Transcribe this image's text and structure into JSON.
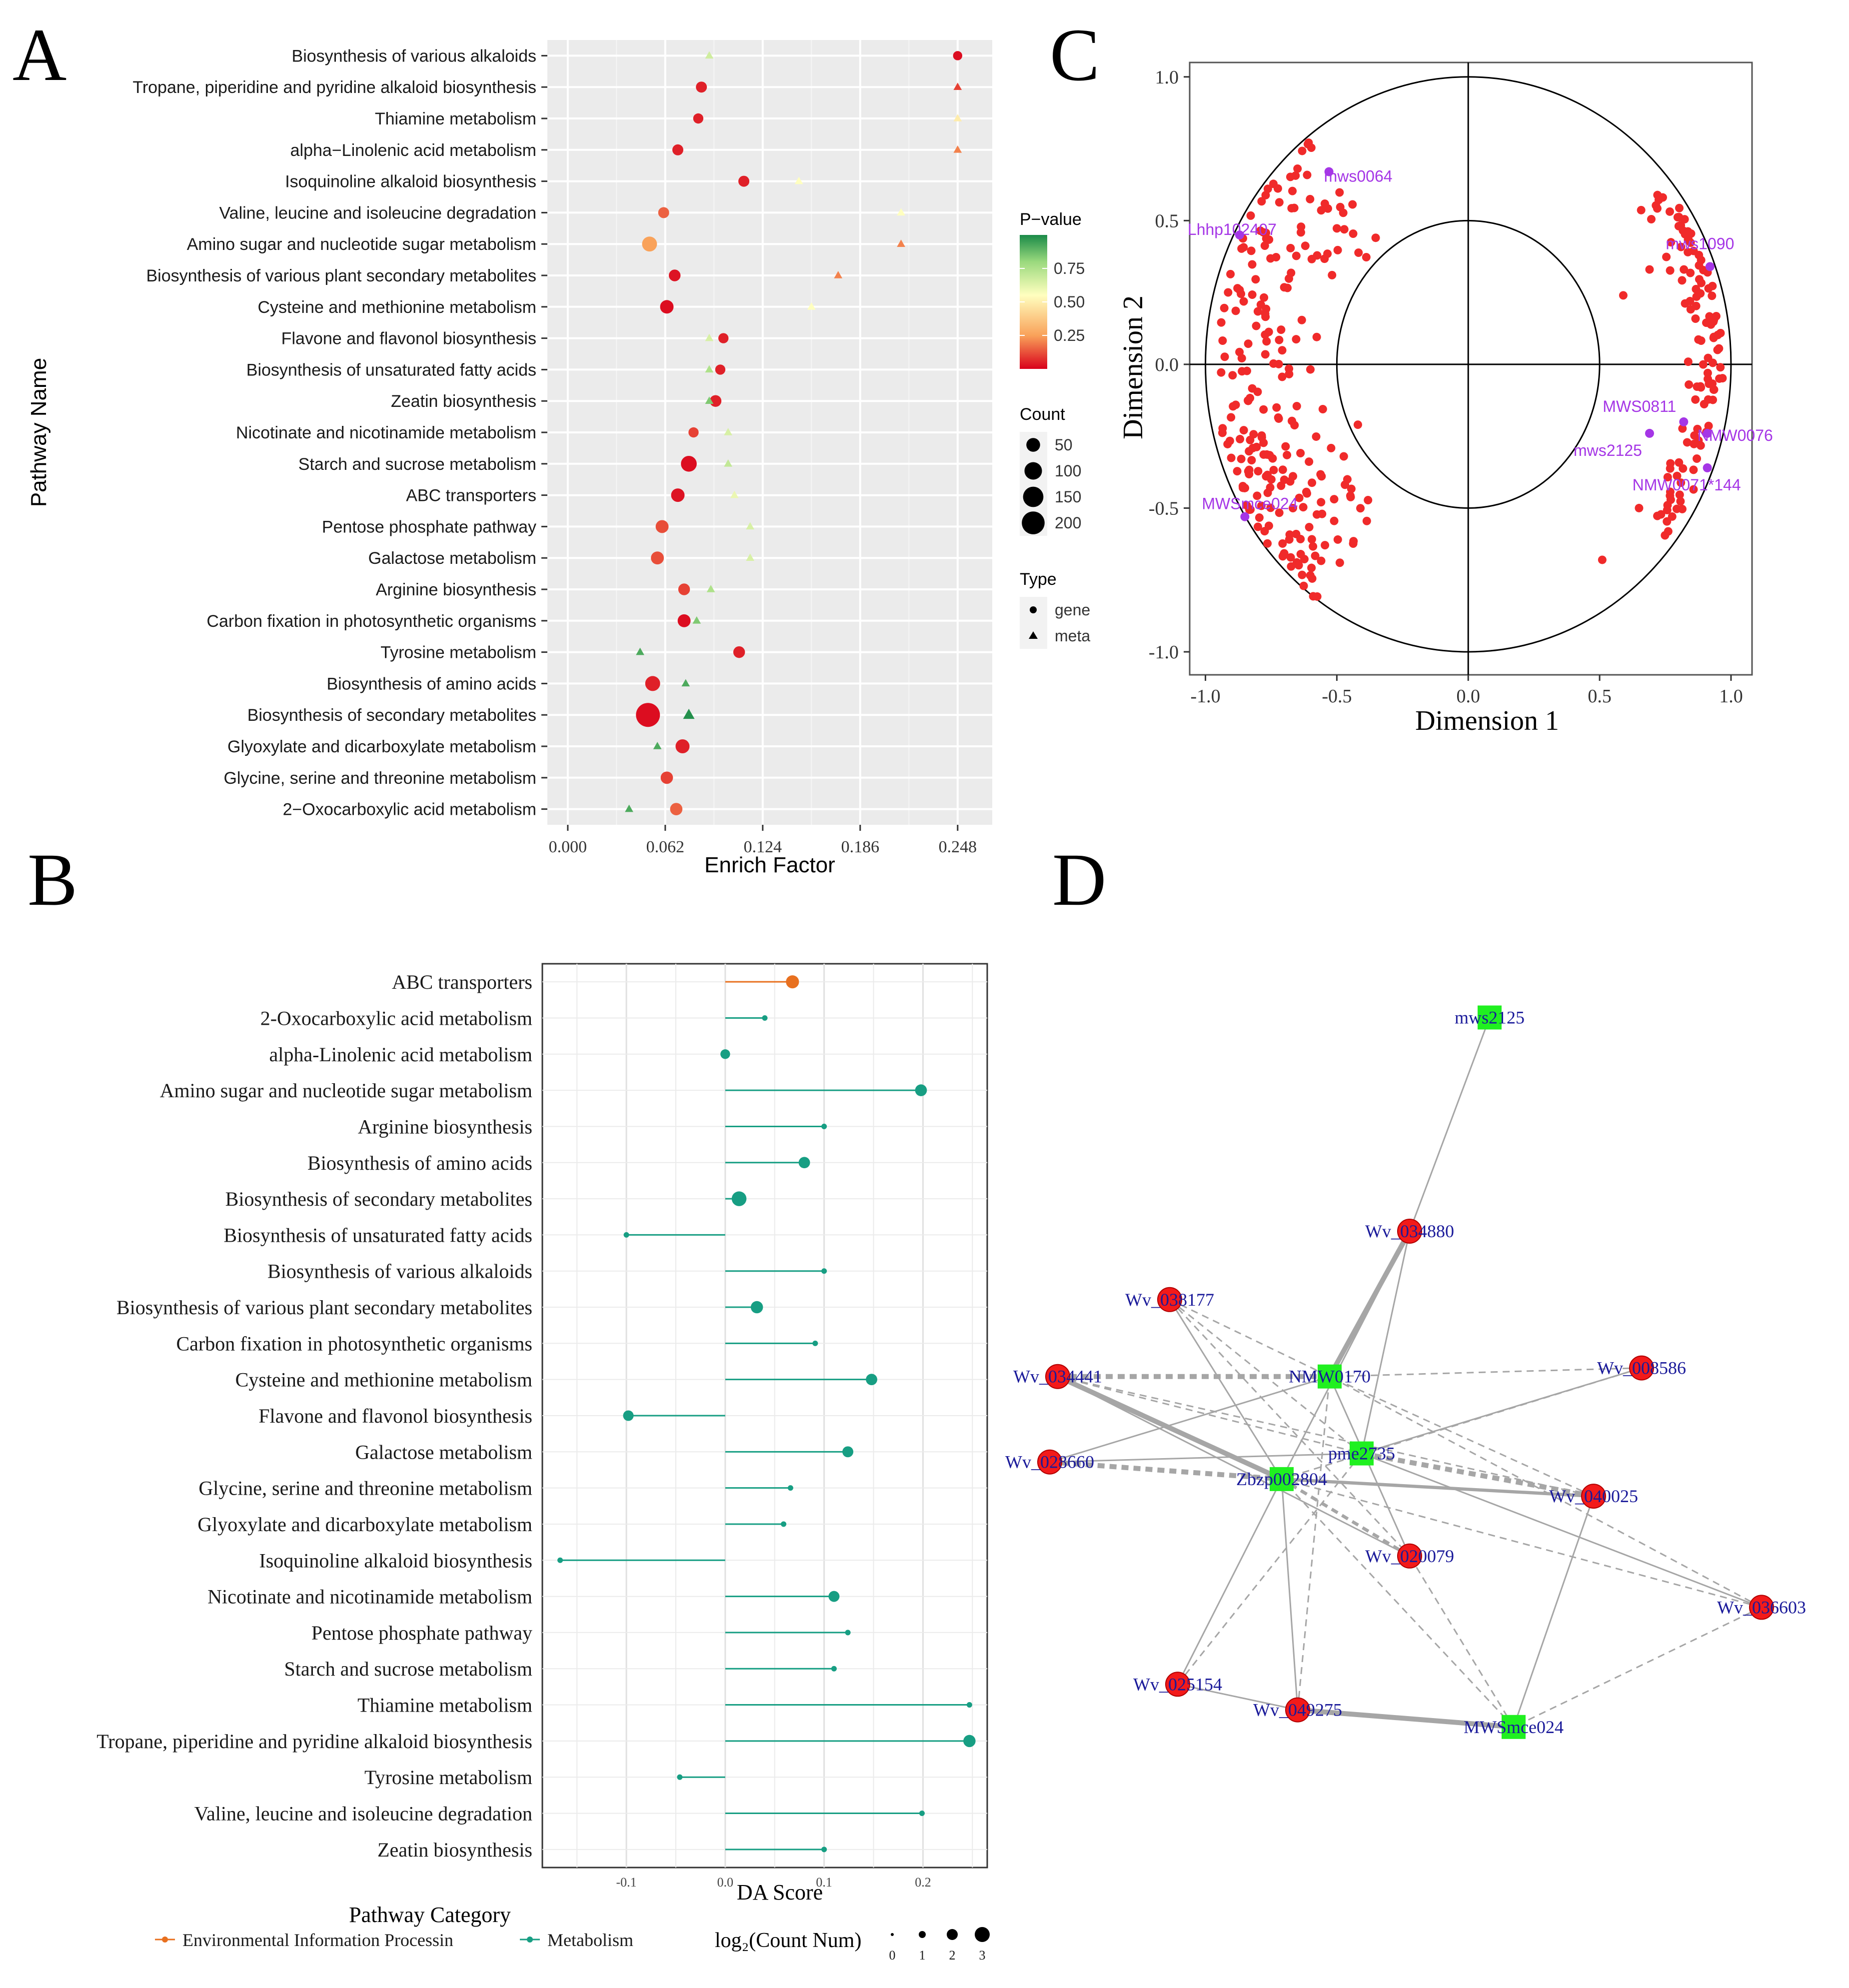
{
  "panels": {
    "a": "A",
    "b": "B",
    "c": "C",
    "d": "D"
  },
  "chart_data": [
    {
      "panel": "A",
      "type": "scatter",
      "xlabel": "Enrich Factor",
      "ylabel": "Pathway Name",
      "xticks": [
        "0.000",
        "0.062",
        "0.124",
        "0.186",
        "0.248"
      ],
      "xlim": [
        -0.013,
        0.27
      ],
      "categories": [
        "Biosynthesis of various alkaloids",
        "Tropane, piperidine and pyridine alkaloid biosynthesis",
        "Thiamine metabolism",
        "alpha−Linolenic acid metabolism",
        "Isoquinoline alkaloid biosynthesis",
        "Valine, leucine and isoleucine degradation",
        "Amino sugar and nucleotide sugar metabolism",
        "Biosynthesis of various plant secondary metabolites",
        "Cysteine and methionine metabolism",
        "Flavone and flavonol biosynthesis",
        "Biosynthesis of unsaturated fatty acids",
        "Zeatin biosynthesis",
        "Nicotinate and nicotinamide metabolism",
        "Starch and sucrose metabolism",
        "ABC transporters",
        "Pentose phosphate pathway",
        "Galactose metabolism",
        "Arginine biosynthesis",
        "Carbon fixation in photosynthetic organisms",
        "Tyrosine metabolism",
        "Biosynthesis of amino acids",
        "Biosynthesis of secondary metabolites",
        "Glyoxylate and dicarboxylate metabolism",
        "Glycine, serine and threonine metabolism",
        "2−Oxocarboxylic acid metabolism"
      ],
      "series": [
        {
          "name": "gene",
          "shape": "circle",
          "x": [
            0.248,
            0.085,
            0.083,
            0.07,
            0.112,
            0.061,
            0.052,
            0.068,
            0.063,
            0.099,
            0.097,
            0.094,
            0.08,
            0.077,
            0.07,
            0.06,
            0.057,
            0.074,
            0.074,
            0.109,
            0.054,
            0.051,
            0.073,
            0.063,
            0.069
          ],
          "count": [
            10,
            20,
            15,
            20,
            20,
            20,
            55,
            25,
            40,
            15,
            15,
            25,
            15,
            65,
            40,
            35,
            35,
            25,
            35,
            25,
            55,
            200,
            45,
            30,
            30
          ],
          "p": [
            0.02,
            0.05,
            0.05,
            0.05,
            0.05,
            0.15,
            0.25,
            0.03,
            0.02,
            0.05,
            0.05,
            0.05,
            0.1,
            0.02,
            0.03,
            0.12,
            0.12,
            0.1,
            0.02,
            0.05,
            0.05,
            0.02,
            0.05,
            0.1,
            0.15
          ]
        },
        {
          "name": "meta",
          "shape": "triangle",
          "x": [
            0.09,
            0.248,
            0.248,
            0.248,
            0.147,
            0.212,
            0.212,
            0.172,
            0.155,
            0.09,
            0.09,
            0.09,
            0.102,
            0.102,
            0.106,
            0.116,
            0.116,
            0.091,
            0.082,
            0.046,
            0.075,
            0.077,
            0.057,
            null,
            0.039
          ],
          "count": [
            5,
            5,
            5,
            5,
            5,
            5,
            5,
            5,
            5,
            5,
            5,
            5,
            5,
            5,
            5,
            5,
            5,
            5,
            5,
            5,
            5,
            20,
            5,
            null,
            5
          ],
          "p": [
            0.62,
            0.1,
            0.45,
            0.2,
            0.5,
            0.5,
            0.2,
            0.2,
            0.5,
            0.6,
            0.7,
            0.8,
            0.6,
            0.65,
            0.55,
            0.6,
            0.6,
            0.7,
            0.8,
            0.9,
            0.9,
            0.98,
            0.9,
            null,
            0.9
          ]
        }
      ],
      "legend_color": {
        "title": "P−value",
        "ticks": [
          "0.75",
          "0.50",
          "0.25"
        ],
        "gradient": [
          "#d9001b",
          "#f9a25a",
          "#ffffbf",
          "#9ad97d",
          "#1a8a48"
        ]
      },
      "legend_size": {
        "title": "Count",
        "values": [
          "50",
          "100",
          "150",
          "200"
        ]
      },
      "legend_shape": {
        "title": "Type",
        "items": [
          "gene",
          "meta"
        ]
      }
    },
    {
      "panel": "B",
      "type": "lollipop",
      "xlabel": "DA Score",
      "xticks": [
        "-0.1",
        "0.0",
        "0.1",
        "0.2"
      ],
      "xlim": [
        -0.185,
        0.265
      ],
      "categories": [
        "ABC transporters",
        "2-Oxocarboxylic acid metabolism",
        "alpha-Linolenic acid metabolism",
        "Amino sugar and nucleotide sugar metabolism",
        "Arginine biosynthesis",
        "Biosynthesis of amino acids",
        "Biosynthesis of secondary metabolites",
        "Biosynthesis of unsaturated fatty acids",
        "Biosynthesis of various alkaloids",
        "Biosynthesis of various plant secondary metabolites",
        "Carbon fixation in photosynthetic organisms",
        "Cysteine and methionine metabolism",
        "Flavone and flavonol biosynthesis",
        "Galactose metabolism",
        "Glycine, serine and threonine metabolism",
        "Glyoxylate and dicarboxylate metabolism",
        "Isoquinoline alkaloid biosynthesis",
        "Nicotinate and nicotinamide metabolism",
        "Pentose phosphate pathway",
        "Starch and sucrose metabolism",
        "Thiamine metabolism",
        "Tropane, piperidine and pyridine alkaloid biosynthesis",
        "Tyrosine metabolism",
        "Valine, leucine and isoleucine degradation",
        "Zeatin biosynthesis"
      ],
      "values": [
        0.068,
        0.04,
        0.0,
        0.198,
        0.1,
        0.08,
        0.014,
        -0.1,
        0.1,
        0.032,
        0.091,
        0.148,
        -0.098,
        0.124,
        0.066,
        0.059,
        -0.167,
        0.11,
        0.124,
        0.11,
        0.247,
        0.247,
        -0.046,
        0.199,
        0.1
      ],
      "log2count": [
        2.4,
        0.6,
        1.6,
        2.1,
        0.6,
        2.0,
        2.8,
        0.6,
        0.6,
        2.2,
        0.6,
        2.0,
        1.8,
        1.9,
        0.6,
        0.6,
        0.6,
        1.9,
        0.6,
        0.6,
        0.6,
        2.2,
        0.6,
        0.6,
        0.6
      ],
      "category_of": [
        "env",
        "met",
        "met",
        "met",
        "met",
        "met",
        "met",
        "met",
        "met",
        "met",
        "met",
        "met",
        "met",
        "met",
        "met",
        "met",
        "met",
        "met",
        "met",
        "met",
        "met",
        "met",
        "met",
        "met",
        "met"
      ],
      "colors": {
        "env": "#e8701f",
        "met": "#179e83"
      },
      "legend_category": {
        "title": "Pathway Category",
        "items": [
          "Environmental Information Processin",
          "Metabolism"
        ]
      },
      "legend_size": {
        "title": "log₂(Count Num)",
        "values": [
          "0",
          "1",
          "2",
          "3"
        ]
      }
    },
    {
      "panel": "C",
      "type": "scatter",
      "xlabel": "Dimension 1",
      "ylabel": "Dimension 2",
      "xticks": [
        "-1.0",
        "-0.5",
        "0.0",
        "0.5",
        "1.0"
      ],
      "yticks": [
        "1.0",
        "0.5",
        "0.0",
        "-0.5",
        "-1.0"
      ],
      "xlim": [
        -1.06,
        1.08
      ],
      "ylim": [
        -1.08,
        1.05
      ],
      "gene_color": "#f02a2a",
      "metabolite_color": "#a536e6",
      "labeled_points": [
        {
          "label": "mws0064",
          "x": -0.53,
          "y": 0.67
        },
        {
          "label": "Lhhp102407",
          "x": -0.87,
          "y": 0.45
        },
        {
          "label": "mws1090",
          "x": 0.92,
          "y": 0.34
        },
        {
          "label": "MWS0811",
          "x": 0.82,
          "y": -0.2
        },
        {
          "label": "mws2125",
          "x": 0.69,
          "y": -0.24
        },
        {
          "label": "NMW0076",
          "x": 0.91,
          "y": -0.24
        },
        {
          "label": "NMW0071*144",
          "x": 0.91,
          "y": -0.36
        },
        {
          "label": "MWSmce024",
          "x": -0.85,
          "y": -0.53
        }
      ]
    },
    {
      "panel": "D",
      "type": "network",
      "gene_color": "#f31a1a",
      "metabolite_color": "#20f020",
      "label_color": "#1a1a9a",
      "metabolites": [
        {
          "id": "mws2125",
          "x": 0.6,
          "y": 0.05
        },
        {
          "id": "NMW0170",
          "x": 0.4,
          "y": 0.47
        },
        {
          "id": "pme2735",
          "x": 0.44,
          "y": 0.56
        },
        {
          "id": "Zbzp002804",
          "x": 0.34,
          "y": 0.59
        },
        {
          "id": "MWSmce024",
          "x": 0.63,
          "y": 0.88
        }
      ],
      "genes": [
        {
          "id": "Wv_034880",
          "x": 0.5,
          "y": 0.3
        },
        {
          "id": "Wv_038177",
          "x": 0.2,
          "y": 0.38
        },
        {
          "id": "Wv_034441",
          "x": 0.06,
          "y": 0.47
        },
        {
          "id": "Wv_008586",
          "x": 0.79,
          "y": 0.46
        },
        {
          "id": "Wv_028660",
          "x": 0.05,
          "y": 0.57
        },
        {
          "id": "Wv_040025",
          "x": 0.73,
          "y": 0.61
        },
        {
          "id": "Wv_020079",
          "x": 0.5,
          "y": 0.68
        },
        {
          "id": "Wv_036603",
          "x": 0.94,
          "y": 0.74
        },
        {
          "id": "Wv_025154",
          "x": 0.21,
          "y": 0.83
        },
        {
          "id": "Wv_049275",
          "x": 0.36,
          "y": 0.86
        }
      ],
      "edges": [
        [
          "mws2125",
          "Wv_034880",
          "solid",
          1
        ],
        [
          "Wv_034880",
          "NMW0170",
          "solid",
          3
        ],
        [
          "Wv_034880",
          "Zbzp002804",
          "solid",
          1
        ],
        [
          "Wv_034880",
          "pme2735",
          "solid",
          1
        ],
        [
          "Wv_038177",
          "Zbzp002804",
          "solid",
          1
        ],
        [
          "Wv_038177",
          "NMW0170",
          "dashed",
          1
        ],
        [
          "Wv_038177",
          "pme2735",
          "dashed",
          1
        ],
        [
          "Wv_038177",
          "Wv_020079",
          "dashed",
          1
        ],
        [
          "Wv_034441",
          "NMW0170",
          "dashed",
          3
        ],
        [
          "Wv_034441",
          "Zbzp002804",
          "solid",
          3
        ],
        [
          "Wv_034441",
          "pme2735",
          "dashed",
          1
        ],
        [
          "Wv_034441",
          "Wv_020079",
          "solid",
          1
        ],
        [
          "Wv_034441",
          "Wv_040025",
          "dashed",
          1
        ],
        [
          "Wv_008586",
          "NMW0170",
          "dashed",
          1
        ],
        [
          "Wv_008586",
          "pme2735",
          "solid",
          1
        ],
        [
          "Wv_008586",
          "Zbzp002804",
          "dashed",
          1
        ],
        [
          "Wv_028660",
          "Zbzp002804",
          "dashed",
          3
        ],
        [
          "Wv_028660",
          "pme2735",
          "solid",
          1
        ],
        [
          "Wv_028660",
          "NMW0170",
          "solid",
          1
        ],
        [
          "Wv_040025",
          "pme2735",
          "dashed",
          3
        ],
        [
          "Wv_040025",
          "Zbzp002804",
          "solid",
          2
        ],
        [
          "Wv_040025",
          "NMW0170",
          "dashed",
          1
        ],
        [
          "Wv_040025",
          "MWSmce024",
          "solid",
          1
        ],
        [
          "Wv_020079",
          "Zbzp002804",
          "dashed",
          2
        ],
        [
          "Wv_020079",
          "NMW0170",
          "solid",
          1
        ],
        [
          "Wv_036603",
          "pme2735",
          "solid",
          1
        ],
        [
          "Wv_036603",
          "MWSmce024",
          "dashed",
          1
        ],
        [
          "Wv_036603",
          "NMW0170",
          "dashed",
          1
        ],
        [
          "Wv_036603",
          "Zbzp002804",
          "dashed",
          1
        ],
        [
          "Wv_025154",
          "Zbzp002804",
          "solid",
          1
        ],
        [
          "Wv_025154",
          "pme2735",
          "dashed",
          1
        ],
        [
          "Wv_025154",
          "Wv_049275",
          "solid",
          1
        ],
        [
          "Wv_049275",
          "Zbzp002804",
          "solid",
          1
        ],
        [
          "Wv_049275",
          "MWSmce024",
          "solid",
          3
        ],
        [
          "Wv_049275",
          "NMW0170",
          "dashed",
          1
        ],
        [
          "MWSmce024",
          "Zbzp002804",
          "dashed",
          1
        ],
        [
          "MWSmce024",
          "Wv_020079",
          "dashed",
          1
        ]
      ]
    }
  ]
}
